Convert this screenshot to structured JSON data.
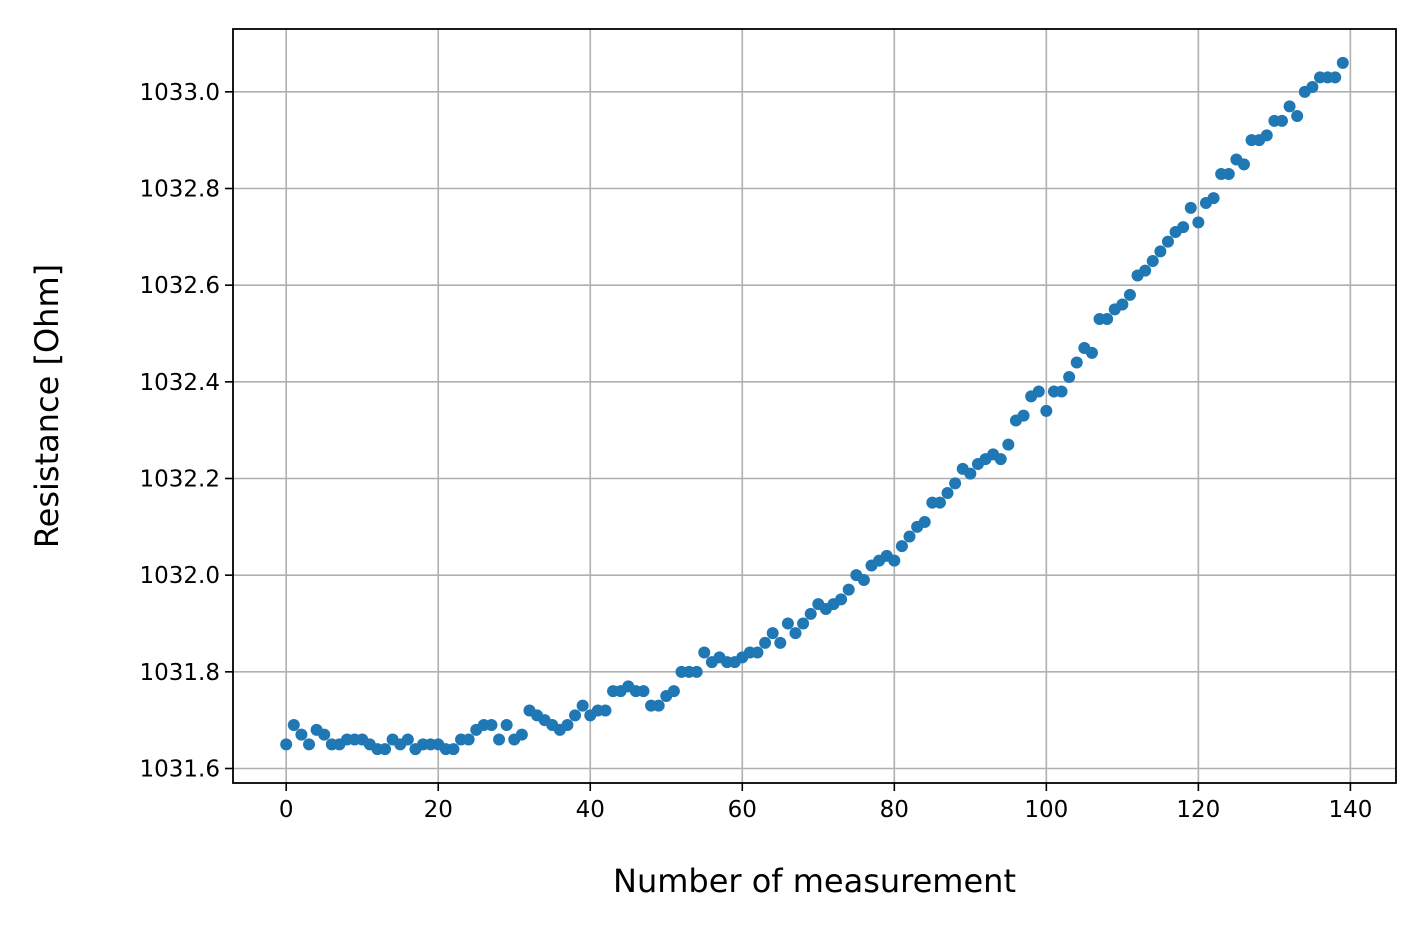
{
  "chart_data": {
    "type": "scatter",
    "title": "",
    "xlabel": "Number of measurement",
    "ylabel": "Resistance [Ohm]",
    "xlim": [
      -7,
      146
    ],
    "ylim": [
      1031.57,
      1033.13
    ],
    "xticks": [
      0,
      20,
      40,
      60,
      80,
      100,
      120,
      140
    ],
    "xtick_labels": [
      "0",
      "20",
      "40",
      "60",
      "80",
      "100",
      "120",
      "140"
    ],
    "yticks": [
      1031.6,
      1031.8,
      1032.0,
      1032.2,
      1032.4,
      1032.6,
      1032.8,
      1033.0
    ],
    "ytick_labels": [
      "1031.6",
      "1031.8",
      "1032.0",
      "1032.2",
      "1032.4",
      "1032.6",
      "1032.8",
      "1033.0"
    ],
    "grid": true,
    "marker_color": "#1f77b4",
    "series": [
      {
        "x": [
          0,
          1,
          2,
          3,
          4,
          5,
          6,
          7,
          8,
          9,
          10,
          11,
          12,
          13,
          14,
          15,
          16,
          17,
          18,
          19,
          20,
          21,
          22,
          23,
          24,
          25,
          26,
          27,
          28,
          29,
          30,
          31,
          32,
          33,
          34,
          35,
          36,
          37,
          38,
          39,
          40,
          41,
          42,
          43,
          44,
          45,
          46,
          47,
          48,
          49,
          50,
          51,
          52,
          53,
          54,
          55,
          56,
          57,
          58,
          59,
          60,
          61,
          62,
          63,
          64,
          65,
          66,
          67,
          68,
          69,
          70,
          71,
          72,
          73,
          74,
          75,
          76,
          77,
          78,
          79,
          80,
          81,
          82,
          83,
          84,
          85,
          86,
          87,
          88,
          89,
          90,
          91,
          92,
          93,
          94,
          95,
          96,
          97,
          98,
          99,
          100,
          101,
          102,
          103,
          104,
          105,
          106,
          107,
          108,
          109,
          110,
          111,
          112,
          113,
          114,
          115,
          116,
          117,
          118,
          119,
          120,
          121,
          122,
          123,
          124,
          125,
          126,
          127,
          128,
          129,
          130,
          131,
          132,
          133,
          134,
          135,
          136,
          137,
          138,
          139
        ],
        "y": [
          1031.65,
          1031.69,
          1031.67,
          1031.65,
          1031.68,
          1031.67,
          1031.65,
          1031.65,
          1031.66,
          1031.66,
          1031.66,
          1031.65,
          1031.64,
          1031.64,
          1031.66,
          1031.65,
          1031.66,
          1031.64,
          1031.65,
          1031.65,
          1031.65,
          1031.64,
          1031.64,
          1031.66,
          1031.66,
          1031.68,
          1031.69,
          1031.69,
          1031.66,
          1031.69,
          1031.66,
          1031.67,
          1031.72,
          1031.71,
          1031.7,
          1031.69,
          1031.68,
          1031.69,
          1031.71,
          1031.73,
          1031.71,
          1031.72,
          1031.72,
          1031.76,
          1031.76,
          1031.77,
          1031.76,
          1031.76,
          1031.73,
          1031.73,
          1031.75,
          1031.76,
          1031.8,
          1031.8,
          1031.8,
          1031.84,
          1031.82,
          1031.83,
          1031.82,
          1031.82,
          1031.83,
          1031.84,
          1031.84,
          1031.86,
          1031.88,
          1031.86,
          1031.9,
          1031.88,
          1031.9,
          1031.92,
          1031.94,
          1031.93,
          1031.94,
          1031.95,
          1031.97,
          1032.0,
          1031.99,
          1032.02,
          1032.03,
          1032.04,
          1032.03,
          1032.06,
          1032.08,
          1032.1,
          1032.11,
          1032.15,
          1032.15,
          1032.17,
          1032.19,
          1032.22,
          1032.21,
          1032.23,
          1032.24,
          1032.25,
          1032.24,
          1032.27,
          1032.32,
          1032.33,
          1032.37,
          1032.38,
          1032.34,
          1032.38,
          1032.38,
          1032.41,
          1032.44,
          1032.47,
          1032.46,
          1032.53,
          1032.53,
          1032.55,
          1032.56,
          1032.58,
          1032.62,
          1032.63,
          1032.65,
          1032.67,
          1032.69,
          1032.71,
          1032.72,
          1032.76,
          1032.73,
          1032.77,
          1032.78,
          1032.83,
          1032.83,
          1032.86,
          1032.85,
          1032.9,
          1032.9,
          1032.91,
          1032.94,
          1032.94,
          1032.97,
          1032.95,
          1033.0,
          1033.01,
          1033.03,
          1033.03,
          1033.03,
          1033.06
        ]
      }
    ]
  }
}
